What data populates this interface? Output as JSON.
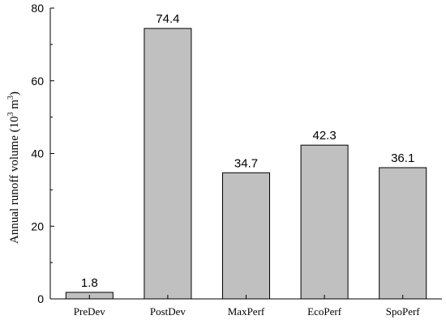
{
  "chart_data": {
    "type": "bar",
    "categories": [
      "PreDev",
      "PostDev",
      "MaxPerf",
      "EcoPerf",
      "SpoPerf"
    ],
    "values": [
      1.8,
      74.4,
      34.7,
      42.3,
      36.1
    ],
    "data_labels": [
      "1.8",
      "74.4",
      "34.7",
      "42.3",
      "36.1"
    ],
    "title": "",
    "xlabel": "",
    "ylabel": "Annual runoff volume (10",
    "ylabel_sup": "3",
    "ylabel_unit": " m",
    "ylabel_unit_sup": "3",
    "ylabel_close": ")",
    "ylim": [
      0,
      80
    ],
    "yticks": [
      0,
      20,
      40,
      60,
      80
    ],
    "ytick_labels": [
      "0",
      "20",
      "40",
      "60",
      "80"
    ],
    "bar_color": "#c0c0c0",
    "bar_edge_color": "#000000",
    "grid": false,
    "legend": "none"
  }
}
